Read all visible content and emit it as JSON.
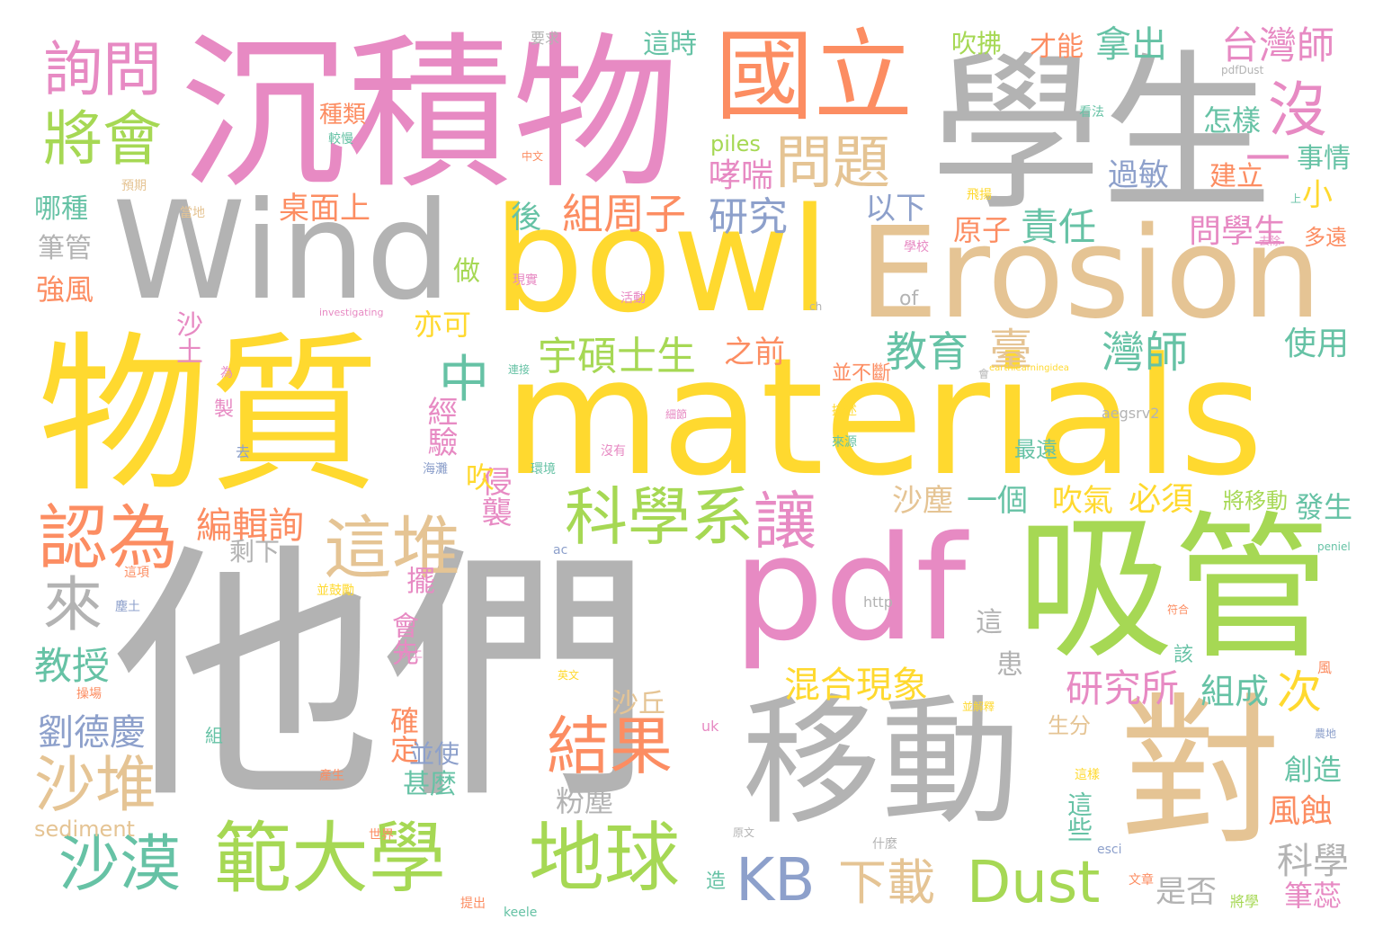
{
  "colors": {
    "yellow": "#ffd92f",
    "gray": "#b3b3b3",
    "pink": "#e78ac3",
    "green": "#a6d854",
    "orange": "#fc8d62",
    "tan": "#e5c494",
    "teal": "#66c2a5",
    "blue": "#8da0cb"
  },
  "words": [
    {
      "id": "w0",
      "text": "他們",
      "color": "gray"
    },
    {
      "id": "w1",
      "text": "物質",
      "color": "yellow"
    },
    {
      "id": "w2",
      "text": "materials",
      "color": "yellow"
    },
    {
      "id": "w3",
      "text": "沉積物",
      "color": "pink"
    },
    {
      "id": "w4",
      "text": "學生",
      "color": "gray"
    },
    {
      "id": "w5",
      "text": "bowl",
      "color": "yellow"
    },
    {
      "id": "w6",
      "text": "Erosion",
      "color": "tan"
    },
    {
      "id": "w7",
      "text": "Wind",
      "color": "gray"
    },
    {
      "id": "w8",
      "text": "pdf",
      "color": "pink"
    },
    {
      "id": "w9",
      "text": "吸管",
      "color": "green"
    },
    {
      "id": "w10",
      "text": "移動",
      "color": "gray"
    },
    {
      "id": "w11",
      "text": "對",
      "color": "tan"
    },
    {
      "id": "w12",
      "text": "國立",
      "color": "orange"
    },
    {
      "id": "w13",
      "text": "範大學",
      "color": "green"
    },
    {
      "id": "w14",
      "text": "地球",
      "color": "green"
    },
    {
      "id": "w15",
      "text": "詢問",
      "color": "pink"
    },
    {
      "id": "w16",
      "text": "將會",
      "color": "green"
    },
    {
      "id": "w17",
      "text": "問題",
      "color": "tan"
    },
    {
      "id": "w18",
      "text": "沒",
      "color": "pink"
    },
    {
      "id": "w19",
      "text": "科學系",
      "color": "green"
    },
    {
      "id": "w20",
      "text": "讓",
      "color": "pink"
    },
    {
      "id": "w21",
      "text": "認為",
      "color": "orange"
    },
    {
      "id": "w22",
      "text": "這堆",
      "color": "tan"
    },
    {
      "id": "w23",
      "text": "結果",
      "color": "orange"
    },
    {
      "id": "w24",
      "text": "中",
      "color": "teal"
    },
    {
      "id": "w25",
      "text": "沙漠",
      "color": "teal"
    },
    {
      "id": "w26",
      "text": "沙堆",
      "color": "tan"
    },
    {
      "id": "w27",
      "text": "來",
      "color": "gray"
    },
    {
      "id": "w28",
      "text": "KB",
      "color": "blue"
    },
    {
      "id": "w29",
      "text": "Dust",
      "color": "green"
    },
    {
      "id": "w30",
      "text": "下載",
      "color": "tan"
    },
    {
      "id": "w31",
      "text": "台灣師",
      "color": "pink"
    },
    {
      "id": "w32",
      "text": "拿出",
      "color": "teal"
    },
    {
      "id": "w33",
      "text": "怎樣",
      "color": "teal"
    },
    {
      "id": "w34",
      "text": "宇碩士生",
      "color": "green"
    },
    {
      "id": "w35",
      "text": "組周子",
      "color": "orange"
    },
    {
      "id": "w36",
      "text": "研究",
      "color": "blue"
    },
    {
      "id": "w37",
      "text": "教育",
      "color": "teal"
    },
    {
      "id": "w38",
      "text": "臺",
      "color": "tan"
    },
    {
      "id": "w39",
      "text": "灣師",
      "color": "teal"
    },
    {
      "id": "w40",
      "text": "研究所",
      "color": "pink"
    },
    {
      "id": "w41",
      "text": "組成",
      "color": "teal"
    },
    {
      "id": "w42",
      "text": "次",
      "color": "yellow"
    },
    {
      "id": "w43",
      "text": "混合現象",
      "color": "yellow"
    },
    {
      "id": "w44",
      "text": "科學",
      "color": "gray"
    },
    {
      "id": "w45",
      "text": "風蝕",
      "color": "orange"
    },
    {
      "id": "w46",
      "text": "創造",
      "color": "teal"
    },
    {
      "id": "w47",
      "text": "筆蕊",
      "color": "pink"
    },
    {
      "id": "w48",
      "text": "編輯詢",
      "color": "orange"
    },
    {
      "id": "w49",
      "text": "教授",
      "color": "teal"
    },
    {
      "id": "w50",
      "text": "劉德慶",
      "color": "blue"
    },
    {
      "id": "w51",
      "text": "桌面上",
      "color": "orange"
    },
    {
      "id": "w52",
      "text": "哮喘",
      "color": "pink"
    },
    {
      "id": "w53",
      "text": "責任",
      "color": "teal"
    },
    {
      "id": "w54",
      "text": "問學生",
      "color": "pink"
    },
    {
      "id": "w55",
      "text": "使用",
      "color": "teal"
    },
    {
      "id": "w56",
      "text": "過敏",
      "color": "blue"
    },
    {
      "id": "w57",
      "text": "事情",
      "color": "teal"
    },
    {
      "id": "w58",
      "text": "建立",
      "color": "orange"
    },
    {
      "id": "w59",
      "text": "一",
      "color": "pink"
    },
    {
      "id": "w60",
      "text": "小",
      "color": "yellow"
    },
    {
      "id": "w61",
      "text": "以下",
      "color": "blue"
    },
    {
      "id": "w62",
      "text": "原子",
      "color": "orange"
    },
    {
      "id": "w63",
      "text": "一個",
      "color": "teal"
    },
    {
      "id": "w64",
      "text": "吹氣",
      "color": "yellow"
    },
    {
      "id": "w65",
      "text": "必須",
      "color": "yellow"
    },
    {
      "id": "w66",
      "text": "沙塵",
      "color": "tan"
    },
    {
      "id": "w67",
      "text": "發生",
      "color": "teal"
    },
    {
      "id": "w68",
      "text": "是否",
      "color": "gray"
    },
    {
      "id": "w69",
      "text": "之前",
      "color": "orange"
    },
    {
      "id": "w70",
      "text": "經驗",
      "color": "pink"
    },
    {
      "id": "w71",
      "text": "侵襲",
      "color": "pink"
    },
    {
      "id": "w72",
      "text": "吹",
      "color": "yellow"
    },
    {
      "id": "w73",
      "text": "後",
      "color": "teal"
    },
    {
      "id": "w74",
      "text": "哪種",
      "color": "teal"
    },
    {
      "id": "w75",
      "text": "筆管",
      "color": "gray"
    },
    {
      "id": "w76",
      "text": "強風",
      "color": "orange"
    },
    {
      "id": "w77",
      "text": "沙土",
      "color": "pink"
    },
    {
      "id": "w78",
      "text": "亦可",
      "color": "yellow"
    },
    {
      "id": "w79",
      "text": "做",
      "color": "green"
    },
    {
      "id": "w80",
      "text": "確定",
      "color": "orange"
    },
    {
      "id": "w81",
      "text": "並使",
      "color": "blue"
    },
    {
      "id": "w82",
      "text": "甚麼",
      "color": "teal"
    },
    {
      "id": "w83",
      "text": "粉塵",
      "color": "gray"
    },
    {
      "id": "w84",
      "text": "沙丘",
      "color": "tan"
    },
    {
      "id": "w85",
      "text": "剩下",
      "color": "gray"
    },
    {
      "id": "w86",
      "text": "會先",
      "color": "pink"
    },
    {
      "id": "w87",
      "text": "擺",
      "color": "pink"
    },
    {
      "id": "w88",
      "text": "這時",
      "color": "teal"
    },
    {
      "id": "w89",
      "text": "吹拂",
      "color": "green"
    },
    {
      "id": "w90",
      "text": "才能",
      "color": "orange"
    },
    {
      "id": "w91",
      "text": "piles",
      "color": "green"
    },
    {
      "id": "w92",
      "text": "種類",
      "color": "orange"
    },
    {
      "id": "w93",
      "text": "sediment",
      "color": "tan"
    },
    {
      "id": "w94",
      "text": "生分",
      "color": "tan"
    },
    {
      "id": "w95",
      "text": "這些",
      "color": "teal"
    },
    {
      "id": "w96",
      "text": "將移動",
      "color": "green"
    },
    {
      "id": "w97",
      "text": "最遠",
      "color": "teal"
    },
    {
      "id": "w98",
      "text": "多遠",
      "color": "orange"
    },
    {
      "id": "w99",
      "text": "並不斷",
      "color": "orange"
    },
    {
      "id": "w100",
      "text": "這",
      "color": "gray"
    },
    {
      "id": "w101",
      "text": "患",
      "color": "gray"
    },
    {
      "id": "w102",
      "text": "該",
      "color": "teal"
    },
    {
      "id": "w103",
      "text": "of",
      "color": "gray"
    },
    {
      "id": "w104",
      "text": "要求",
      "color": "gray"
    },
    {
      "id": "w105",
      "text": "aegsrv2",
      "color": "gray"
    },
    {
      "id": "w106",
      "text": "http",
      "color": "gray"
    },
    {
      "id": "w107",
      "text": "pdfDust",
      "color": "gray"
    },
    {
      "id": "w108",
      "text": "製",
      "color": "pink"
    },
    {
      "id": "w109",
      "text": "組",
      "color": "teal"
    },
    {
      "id": "w110",
      "text": "uk",
      "color": "pink"
    },
    {
      "id": "w111",
      "text": "esci",
      "color": "blue"
    },
    {
      "id": "w112",
      "text": "keele",
      "color": "teal"
    },
    {
      "id": "w113",
      "text": "ac",
      "color": "blue"
    },
    {
      "id": "w114",
      "text": "ch",
      "color": "gray"
    },
    {
      "id": "w115",
      "text": "peniel",
      "color": "teal"
    },
    {
      "id": "w116",
      "text": "investigating",
      "color": "pink"
    },
    {
      "id": "w117",
      "text": "earthlearningidea",
      "color": "yellow"
    },
    {
      "id": "w118",
      "text": "預期",
      "color": "tan"
    },
    {
      "id": "w119",
      "text": "當地",
      "color": "tan"
    },
    {
      "id": "w120",
      "text": "較慢",
      "color": "teal"
    },
    {
      "id": "w121",
      "text": "中文",
      "color": "orange"
    },
    {
      "id": "w122",
      "text": "看法",
      "color": "teal"
    },
    {
      "id": "w123",
      "text": "飛揚",
      "color": "yellow"
    },
    {
      "id": "w124",
      "text": "去除",
      "color": "pink"
    },
    {
      "id": "w125",
      "text": "上",
      "color": "teal"
    },
    {
      "id": "w126",
      "text": "學校",
      "color": "pink"
    },
    {
      "id": "w127",
      "text": "現實",
      "color": "pink"
    },
    {
      "id": "w128",
      "text": "活動",
      "color": "pink"
    },
    {
      "id": "w129",
      "text": "為",
      "color": "pink"
    },
    {
      "id": "w130",
      "text": "連接",
      "color": "teal"
    },
    {
      "id": "w131",
      "text": "會",
      "color": "gray"
    },
    {
      "id": "w132",
      "text": "描述",
      "color": "yellow"
    },
    {
      "id": "w133",
      "text": "來源",
      "color": "teal"
    },
    {
      "id": "w134",
      "text": "細節",
      "color": "pink"
    },
    {
      "id": "w135",
      "text": "去",
      "color": "blue"
    },
    {
      "id": "w136",
      "text": "海灘",
      "color": "blue"
    },
    {
      "id": "w137",
      "text": "環境",
      "color": "teal"
    },
    {
      "id": "w138",
      "text": "沒有",
      "color": "pink"
    },
    {
      "id": "w139",
      "text": "這項",
      "color": "orange"
    },
    {
      "id": "w140",
      "text": "塵土",
      "color": "blue"
    },
    {
      "id": "w141",
      "text": "並鼓勵",
      "color": "yellow"
    },
    {
      "id": "w142",
      "text": "以上",
      "color": "pink"
    },
    {
      "id": "w143",
      "text": "操場",
      "color": "orange"
    },
    {
      "id": "w144",
      "text": "英文",
      "color": "yellow"
    },
    {
      "id": "w145",
      "text": "並解釋",
      "color": "yellow"
    },
    {
      "id": "w146",
      "text": "產生",
      "color": "orange"
    },
    {
      "id": "w147",
      "text": "世界",
      "color": "orange"
    },
    {
      "id": "w148",
      "text": "原文",
      "color": "gray"
    },
    {
      "id": "w149",
      "text": "什麼",
      "color": "gray"
    },
    {
      "id": "w150",
      "text": "這樣",
      "color": "yellow"
    },
    {
      "id": "w151",
      "text": "文章",
      "color": "orange"
    },
    {
      "id": "w152",
      "text": "造",
      "color": "teal"
    },
    {
      "id": "w153",
      "text": "提出",
      "color": "orange"
    },
    {
      "id": "w154",
      "text": "將學",
      "color": "green"
    },
    {
      "id": "w155",
      "text": "符合",
      "color": "orange"
    },
    {
      "id": "w156",
      "text": "風",
      "color": "orange"
    },
    {
      "id": "w157",
      "text": "農地",
      "color": "blue"
    }
  ]
}
